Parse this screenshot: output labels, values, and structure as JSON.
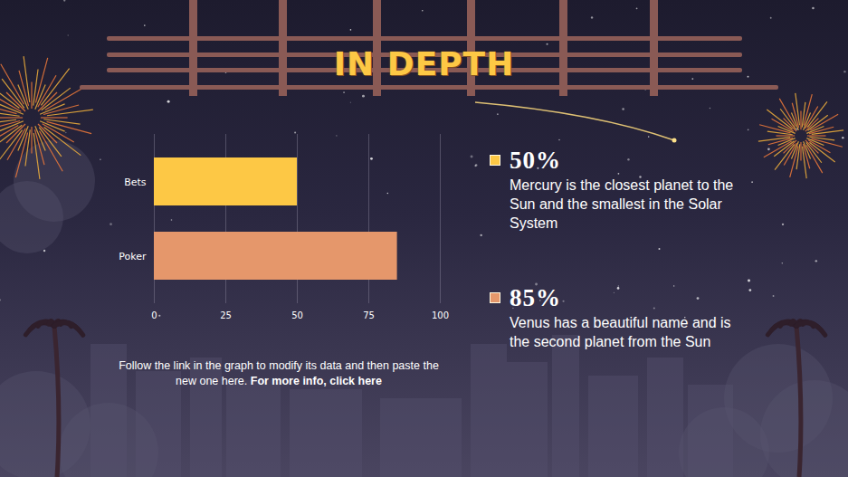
{
  "chart_data": {
    "type": "bar",
    "title": "IN DEPTH",
    "orientation": "horizontal",
    "categories": [
      "Bets",
      "Poker"
    ],
    "values": [
      50,
      85
    ],
    "colors": [
      "#fdc845",
      "#e5976b"
    ],
    "xlim": [
      0,
      100
    ],
    "xticks": [
      0,
      25,
      50,
      75,
      100
    ],
    "grid": true,
    "annotations": [
      {
        "label": "50%",
        "text": "Mercury is the closest planet to the Sun and the smallest in the Solar System"
      },
      {
        "label": "85%",
        "text": "Venus has a beautiful name and is the second planet from the Sun"
      }
    ],
    "caption": "Follow the link in the graph to modify its data and then paste the new one here.",
    "caption_link": "For more info, click here"
  }
}
